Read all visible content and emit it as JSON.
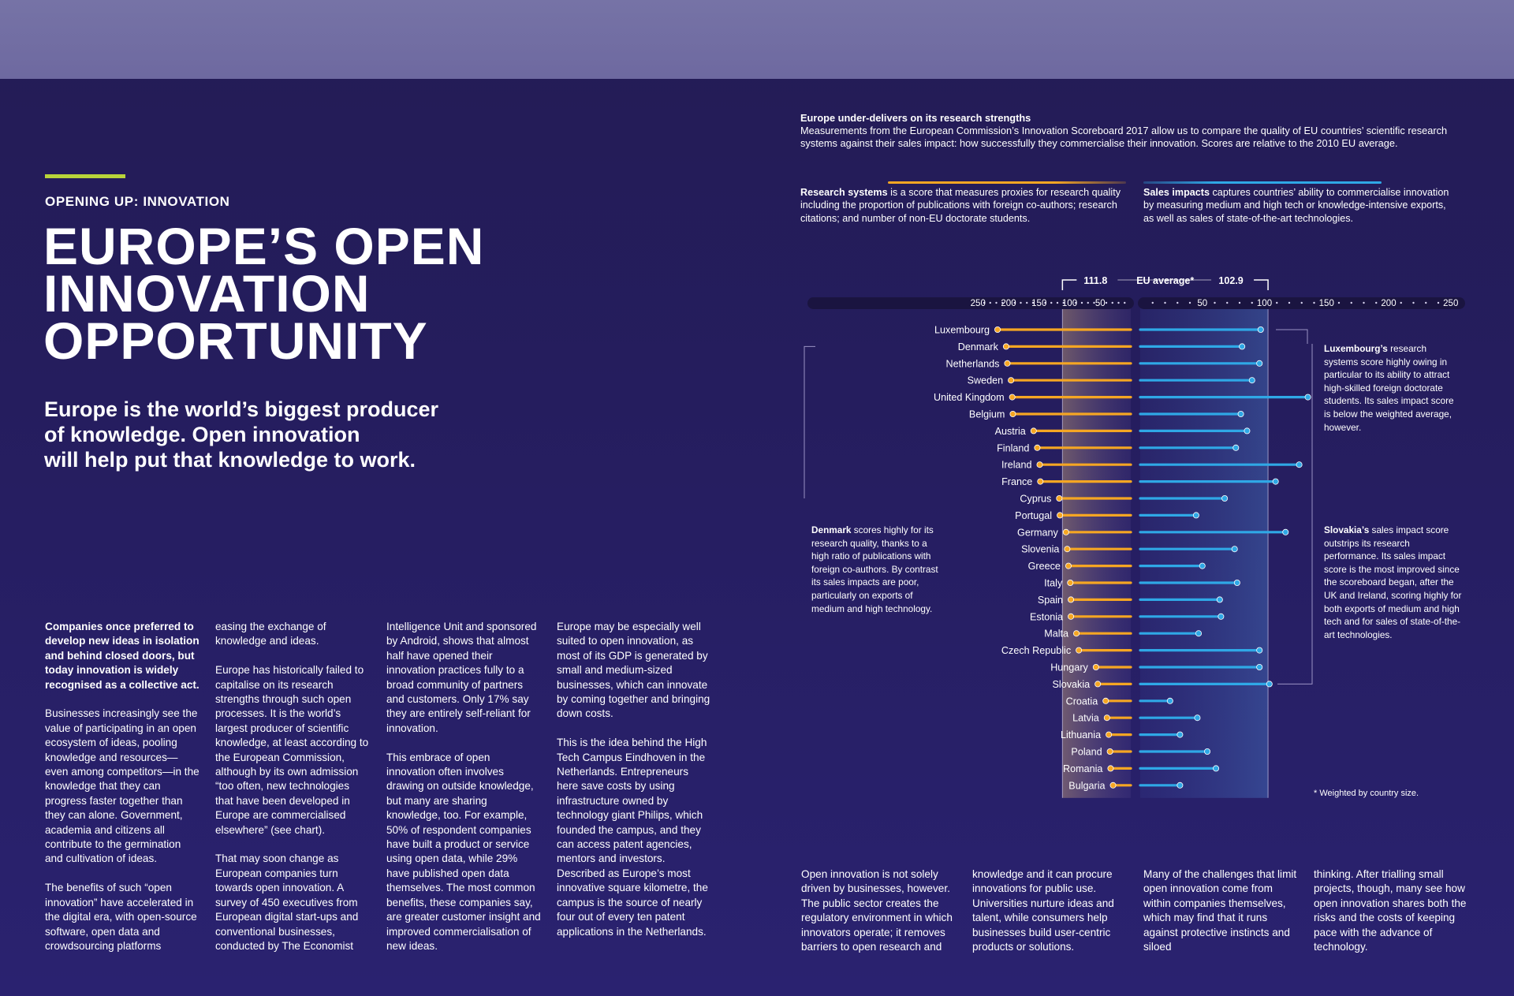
{
  "header": {
    "kicker": "OPENING UP: INNOVATION",
    "title_lines": [
      "EUROPE’S OPEN",
      "INNOVATION",
      "OPPORTUNITY"
    ],
    "standfirst_lines": [
      "Europe is the world’s biggest producer",
      "of knowledge. Open innovation",
      "will help put that knowledge to work."
    ]
  },
  "body_columns": [
    [
      "Companies once preferred to develop new ideas in isolation and behind closed doors, but today innovation is widely recognised as a collective act.",
      "Businesses increasingly see the value of participating in an open ecosystem of ideas, pooling knowledge and resources—even among competitors—in the knowledge that they can progress faster together than they can alone. Government, academia and citizens all contribute to the germination and cultivation of ideas.",
      "The benefits of such “open innovation” have accelerated in the digital era, with open-source software, open data and crowdsourcing platforms"
    ],
    [
      "easing the exchange of knowledge and ideas.",
      "Europe has historically failed to capitalise on its research strengths through such open processes. It is the world’s largest producer of scientific knowledge, at least according to the European Commission, although by its own admission “too often, new technologies that have been developed in Europe are commercialised elsewhere” (see chart).",
      "That may soon change as European companies turn towards open innovation. A survey of 450 executives from European digital start-ups and conventional businesses, conducted by The Economist"
    ],
    [
      "Intelligence Unit and sponsored by Android, shows that almost half have opened their innovation practices fully to a broad community of partners and customers. Only 17% say they are entirely self-reliant for innovation.",
      "This embrace of open innovation often involves drawing on outside knowledge, but many are sharing knowledge, too. For example, 50% of respondent companies have built a product or service using open data, while 29% have published open data themselves. The most common benefits, these companies say, are greater customer insight and improved commercialisation of new ideas."
    ],
    [
      "Europe may be especially well suited to open innovation, as most of its GDP is generated by small and medium-sized businesses, which can innovate by coming together and bringing down costs.",
      "This is the idea behind the High Tech Campus Eindhoven in the Netherlands. Entrepreneurs here save costs by using infrastructure owned by technology giant Philips, which founded the campus, and they can access patent agencies, mentors and investors. Described as Europe’s most innovative square kilometre, the campus is the source of nearly four out of every ten patent applications in the Netherlands."
    ],
    [
      "Open innovation is not solely driven by businesses, however. The public sector creates the regulatory environment in which innovators operate; it removes barriers to open research and"
    ],
    [
      "knowledge and it can procure innovations for public use. Universities nurture ideas and talent, while consumers help businesses build user-centric products or solutions."
    ],
    [
      "Many of the challenges that limit open innovation come from within companies themselves, which may find that it runs against protective instincts and siloed"
    ],
    [
      "thinking. After trialling small projects, though, many see how open innovation shares both the risks and the costs of keeping pace with the advance of technology."
    ]
  ],
  "chart_intro": {
    "heading": "Europe under-delivers on its research strengths",
    "text": "Measurements from the European Commission’s Innovation Scoreboard 2017 allow us to compare the quality of EU countries’ scientific research systems against their sales impact: how successfully they commercialise their innovation. Scores are relative to the 2010 EU average."
  },
  "legend": {
    "research_bold": "Research systems",
    "research_text": " is a score that measures proxies for research quality including the proportion of publications with foreign co-authors; research citations; and number of non-EU doctorate students.",
    "sales_bold": "Sales impacts",
    "sales_text": " captures countries’ ability to commercialise innovation by measuring medium and high tech or knowledge-intensive exports, as well as sales of state-of-the-art technologies."
  },
  "notes": {
    "luxembourg_bold": "Luxembourg’s",
    "luxembourg_text": " research systems score highly owing in particular to its ability to attract high-skilled foreign doctorate students. Its sales impact score is below the weighted average, however.",
    "denmark_bold": "Denmark",
    "denmark_text": " scores highly for its research quality, thanks to a high ratio of publications with foreign co-authors. By contrast its sales impacts are poor, particularly on exports of medium and high technology.",
    "slovakia_bold": "Slovakia’s",
    "slovakia_text": " sales impact score outstrips its research performance. Its sales impact score is the most improved since the scoreboard began, after the UK and Ireland, scoring highly for both exports of medium and high tech and for sales of state-of-the-art technologies.",
    "footnote": "* Weighted by country size."
  },
  "colors": {
    "background": "#251d5e",
    "top_band": "#7470a4",
    "accent_green": "#b9d43a",
    "research_orange": "#f5a623",
    "sales_blue": "#2fa8e6"
  },
  "chart_data": {
    "type": "bar",
    "title": "Europe under-delivers on its research strengths",
    "orientation": "horizontal, mirrored",
    "left_axis_ticks": [
      "250",
      "200",
      "150",
      "100",
      "50"
    ],
    "right_axis_ticks": [
      "50",
      "100",
      "150",
      "200",
      "250"
    ],
    "eu_average_label": "EU average*",
    "eu_average_research_label": "111.8",
    "eu_average_sales_label": "102.9",
    "eu_average_research": 111.8,
    "eu_average_sales": 102.9,
    "categories": [
      "Luxembourg",
      "Denmark",
      "Netherlands",
      "Sweden",
      "United Kingdom",
      "Belgium",
      "Austria",
      "Finland",
      "Ireland",
      "France",
      "Cyprus",
      "Portugal",
      "Germany",
      "Slovenia",
      "Greece",
      "Italy",
      "Spain",
      "Estonia",
      "Malta",
      "Czech Republic",
      "Hungary",
      "Slovakia",
      "Croatia",
      "Latvia",
      "Lithuania",
      "Poland",
      "Romania",
      "Bulgaria"
    ],
    "series": [
      {
        "name": "Research systems",
        "values": [
          218,
          204,
          202,
          196,
          194,
          193,
          159,
          153,
          149,
          148,
          117,
          116,
          106,
          104,
          102,
          99,
          98,
          98,
          89,
          85,
          57,
          54,
          41,
          39,
          36,
          34,
          33,
          29
        ]
      },
      {
        "name": "Sales impacts",
        "values": [
          97,
          82,
          96,
          90,
          135,
          81,
          86,
          77,
          128,
          109,
          68,
          45,
          117,
          76,
          50,
          78,
          64,
          65,
          47,
          96,
          96,
          104,
          24,
          46,
          32,
          54,
          61,
          32
        ]
      }
    ]
  }
}
